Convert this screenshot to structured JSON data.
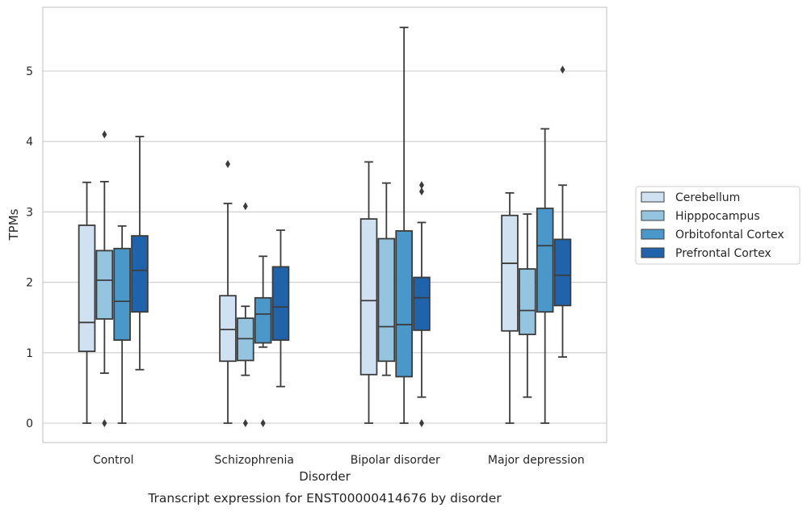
{
  "chart_data": {
    "type": "boxplot",
    "title": "Transcript expression for ENST00000414676 by disorder",
    "xlabel": "Disorder",
    "ylabel": "TPMs",
    "ylim": [
      -0.28,
      5.88
    ],
    "yticks": [
      0,
      1,
      2,
      3,
      4,
      5
    ],
    "grid": "horizontal",
    "legend_position": "right",
    "categories": [
      "Control",
      "Schizophrenia",
      "Bipolar disorder",
      "Major depression"
    ],
    "series": [
      {
        "name": "Cerebellum",
        "color": "#d0e1f2",
        "boxes": [
          {
            "whislo": 0.0,
            "q1": 1.02,
            "med": 1.43,
            "q3": 2.81,
            "whishi": 3.42,
            "fliers": []
          },
          {
            "whislo": 0.0,
            "q1": 0.88,
            "med": 1.33,
            "q3": 1.81,
            "whishi": 3.12,
            "fliers": [
              3.68
            ]
          },
          {
            "whislo": 0.0,
            "q1": 0.69,
            "med": 1.74,
            "q3": 2.9,
            "whishi": 3.71,
            "fliers": []
          },
          {
            "whislo": 0.0,
            "q1": 1.31,
            "med": 2.27,
            "q3": 2.95,
            "whishi": 3.27,
            "fliers": []
          }
        ]
      },
      {
        "name": "Hipppocampus",
        "color": "#94c4df",
        "boxes": [
          {
            "whislo": 0.71,
            "q1": 1.48,
            "med": 2.03,
            "q3": 2.45,
            "whishi": 3.43,
            "fliers": [
              0.0,
              4.1
            ]
          },
          {
            "whislo": 0.68,
            "q1": 0.89,
            "med": 1.2,
            "q3": 1.49,
            "whishi": 1.66,
            "fliers": [
              0.0,
              3.08
            ]
          },
          {
            "whislo": 0.68,
            "q1": 0.88,
            "med": 1.37,
            "q3": 2.62,
            "whishi": 3.41,
            "fliers": []
          },
          {
            "whislo": 0.37,
            "q1": 1.26,
            "med": 1.6,
            "q3": 2.19,
            "whishi": 2.97,
            "fliers": []
          }
        ]
      },
      {
        "name": "Orbitofontal Cortex",
        "color": "#4a98c9",
        "boxes": [
          {
            "whislo": 0.0,
            "q1": 1.18,
            "med": 1.73,
            "q3": 2.48,
            "whishi": 2.8,
            "fliers": []
          },
          {
            "whislo": 1.08,
            "q1": 1.14,
            "med": 1.55,
            "q3": 1.78,
            "whishi": 2.37,
            "fliers": [
              0.0
            ]
          },
          {
            "whislo": 0.0,
            "q1": 0.66,
            "med": 1.4,
            "q3": 2.73,
            "whishi": 5.62,
            "fliers": []
          },
          {
            "whislo": 0.0,
            "q1": 1.58,
            "med": 2.52,
            "q3": 3.05,
            "whishi": 4.18,
            "fliers": []
          }
        ]
      },
      {
        "name": "Prefrontal Cortex",
        "color": "#2163aa",
        "boxes": [
          {
            "whislo": 0.76,
            "q1": 1.58,
            "med": 2.17,
            "q3": 2.66,
            "whishi": 4.07,
            "fliers": []
          },
          {
            "whislo": 0.52,
            "q1": 1.18,
            "med": 1.65,
            "q3": 2.22,
            "whishi": 2.74,
            "fliers": []
          },
          {
            "whislo": 0.37,
            "q1": 1.32,
            "med": 1.78,
            "q3": 2.07,
            "whishi": 2.85,
            "fliers": [
              0.0,
              3.29,
              3.38
            ]
          },
          {
            "whislo": 0.94,
            "q1": 1.67,
            "med": 2.1,
            "q3": 2.61,
            "whishi": 3.38,
            "fliers": [
              5.02
            ]
          }
        ]
      }
    ]
  }
}
